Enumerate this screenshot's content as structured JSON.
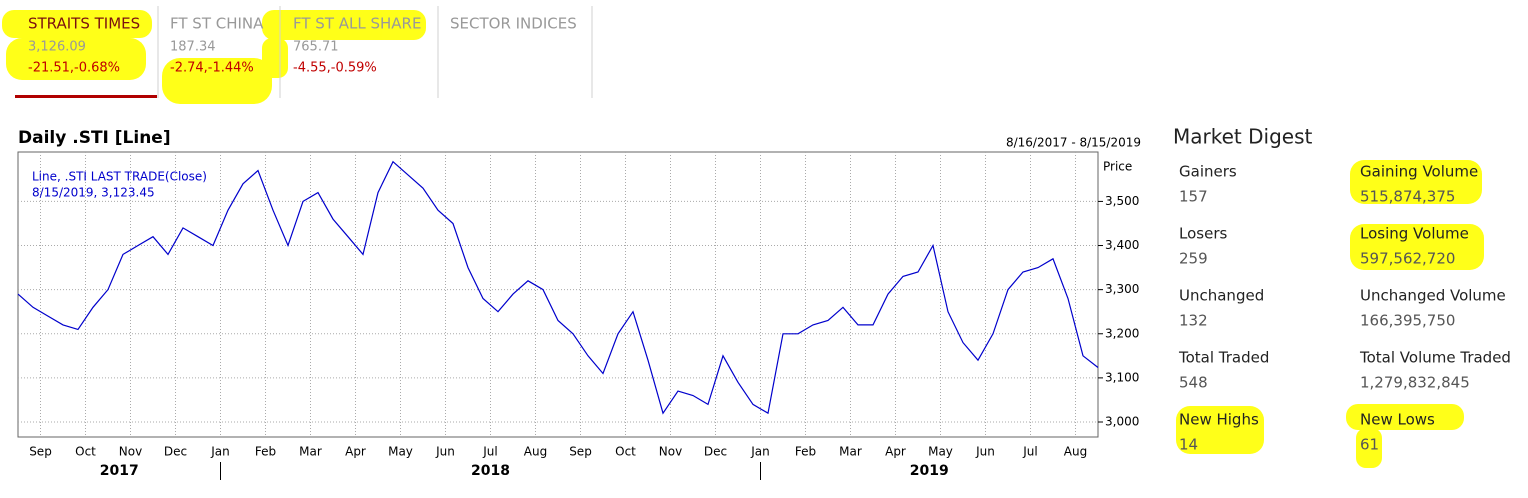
{
  "tabs": [
    {
      "name": "STRAITS TIMES",
      "value": "3,126.09",
      "change": "-21.51,-0.68%"
    },
    {
      "name": "FT ST CHINA",
      "value": "187.34",
      "change": "-2.74,-1.44%"
    },
    {
      "name": "FT ST ALL SHARE",
      "value": "765.71",
      "change": "-4.55,-0.59%"
    },
    {
      "name": "SECTOR INDICES"
    }
  ],
  "chart_data": {
    "type": "line",
    "title": "Daily .STI [Line]",
    "date_range": "8/16/2017 - 8/15/2019",
    "y_axis_label": "Price",
    "legend_lines": [
      "Line, .STI LAST TRADE(Close)",
      "8/15/2019, 3,123.45"
    ],
    "month_labels": [
      "Sep",
      "Oct",
      "Nov",
      "Dec",
      "Jan",
      "Feb",
      "Mar",
      "Apr",
      "May",
      "Jun",
      "Jul",
      "Aug",
      "Sep",
      "Oct",
      "Nov",
      "Dec",
      "Jan",
      "Feb",
      "Mar",
      "Apr",
      "May",
      "Jun",
      "Jul",
      "Aug"
    ],
    "year_labels": [
      "2017",
      "2018",
      "2019"
    ],
    "color": "#0000cc",
    "values": [
      3290,
      3260,
      3240,
      3220,
      3210,
      3260,
      3300,
      3380,
      3400,
      3420,
      3380,
      3440,
      3420,
      3400,
      3480,
      3540,
      3570,
      3480,
      3400,
      3500,
      3520,
      3460,
      3420,
      3380,
      3520,
      3590,
      3560,
      3530,
      3480,
      3450,
      3350,
      3280,
      3250,
      3290,
      3320,
      3300,
      3230,
      3200,
      3150,
      3110,
      3200,
      3250,
      3140,
      3020,
      3070,
      3060,
      3040,
      3150,
      3090,
      3040,
      3020,
      3200,
      3200,
      3220,
      3230,
      3260,
      3220,
      3220,
      3290,
      3330,
      3340,
      3400,
      3250,
      3180,
      3140,
      3200,
      3300,
      3340,
      3350,
      3370,
      3280,
      3150,
      3123.45
    ],
    "ylim": [
      2966,
      3612
    ],
    "yticks": [
      {
        "value": 3000,
        "label": "3,000"
      },
      {
        "value": 3100,
        "label": "3,100"
      },
      {
        "value": 3200,
        "label": "3,200"
      },
      {
        "value": 3300,
        "label": "3,300"
      },
      {
        "value": 3400,
        "label": "3,400"
      },
      {
        "value": 3500,
        "label": "3,500"
      }
    ],
    "grid": true
  },
  "market_digest": {
    "title": "Market Digest",
    "items": [
      {
        "label": "Gainers",
        "value": "157"
      },
      {
        "label": "Gaining Volume",
        "value": "515,874,375"
      },
      {
        "label": "Losers",
        "value": "259"
      },
      {
        "label": "Losing Volume",
        "value": "597,562,720"
      },
      {
        "label": "Unchanged",
        "value": "132"
      },
      {
        "label": "Unchanged Volume",
        "value": "166,395,750"
      },
      {
        "label": "Total Traded",
        "value": "548"
      },
      {
        "label": "Total Volume Traded",
        "value": "1,279,832,845"
      },
      {
        "label": "New Highs",
        "value": "14"
      },
      {
        "label": "New Lows",
        "value": "61"
      }
    ]
  }
}
